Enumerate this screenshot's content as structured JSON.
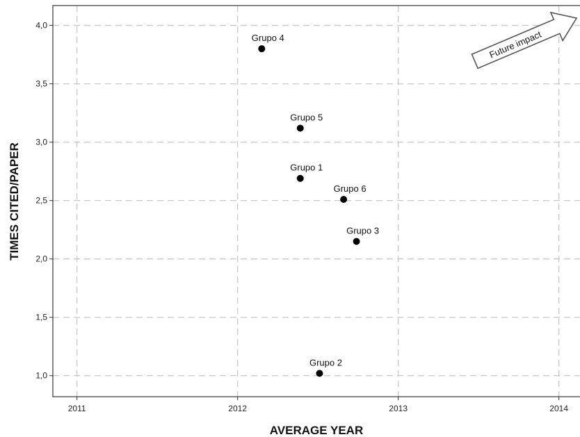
{
  "chart_data": {
    "type": "scatter",
    "xlabel": "AVERAGE YEAR",
    "ylabel": "TIMES CITED/PAPER",
    "xlim": [
      2010.85,
      2014.14
    ],
    "ylim": [
      0.82,
      4.17
    ],
    "xticks": [
      {
        "value": 2011,
        "label": "2011"
      },
      {
        "value": 2012,
        "label": "2012"
      },
      {
        "value": 2013,
        "label": "2013"
      },
      {
        "value": 2014,
        "label": "2014"
      }
    ],
    "yticks": [
      {
        "value": 1.0,
        "label": "1,0"
      },
      {
        "value": 1.5,
        "label": "1,5"
      },
      {
        "value": 2.0,
        "label": "2,0"
      },
      {
        "value": 2.5,
        "label": "2,5"
      },
      {
        "value": 3.0,
        "label": "3,0"
      },
      {
        "value": 3.5,
        "label": "3,5"
      },
      {
        "value": 4.0,
        "label": "4,0"
      }
    ],
    "grid": true,
    "point_color": "#000000",
    "points": [
      {
        "label": "Grupo 4",
        "x": 2012.15,
        "y": 3.8
      },
      {
        "label": "Grupo 5",
        "x": 2012.39,
        "y": 3.12
      },
      {
        "label": "Grupo 1",
        "x": 2012.39,
        "y": 2.69
      },
      {
        "label": "Grupo 6",
        "x": 2012.66,
        "y": 2.51
      },
      {
        "label": "Grupo 3",
        "x": 2012.74,
        "y": 2.15
      },
      {
        "label": "Grupo 2",
        "x": 2012.51,
        "y": 1.02
      }
    ],
    "annotation": {
      "text": "Future impact",
      "shape": "arrow-up-right"
    }
  }
}
